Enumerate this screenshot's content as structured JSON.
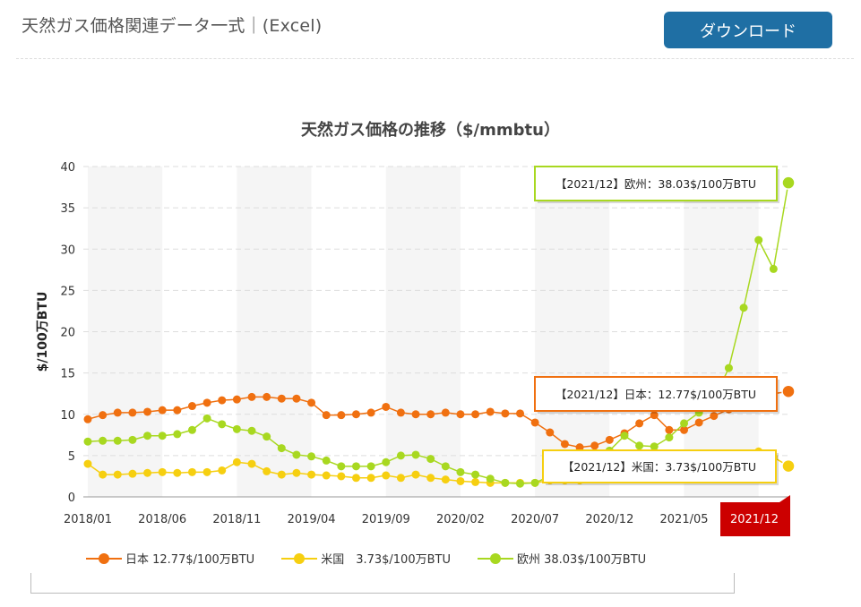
{
  "header": {
    "title": "天然ガス価格関連データ一式｜(Excel)",
    "download_label": "ダウンロード"
  },
  "colors": {
    "japan": "#f07010",
    "us": "#f6cf10",
    "europe": "#a8d820",
    "highlight": "#cc0000",
    "download_button": "#1f6fa4"
  },
  "chart_data": {
    "type": "line",
    "title": "天然ガス価格の推移（$/mmbtu）",
    "ylabel": "$/100万BTU",
    "xlabel": "",
    "ylim": [
      0,
      40
    ],
    "yticks": [
      "0",
      "5",
      "10",
      "15",
      "20",
      "25",
      "30",
      "35",
      "40"
    ],
    "x_tick_labels": [
      "2018/01",
      "2018/06",
      "2018/11",
      "2019/04",
      "2019/09",
      "2020/02",
      "2020/07",
      "2020/12",
      "2021/05",
      "2021/12"
    ],
    "highlighted_x_label": "2021/12",
    "grid": true,
    "legend_position": "bottom",
    "series": [
      {
        "name": "日本",
        "legend_label": "日本 12.77$/100万BTU",
        "tooltip": "【2021/12】日本：12.77$/100万BTU",
        "values": [
          9.4,
          9.9,
          10.2,
          10.2,
          10.3,
          10.5,
          10.5,
          11.0,
          11.4,
          11.7,
          11.8,
          12.1,
          12.1,
          11.9,
          11.9,
          11.4,
          9.9,
          9.9,
          10.0,
          10.2,
          10.9,
          10.2,
          10.0,
          10.0,
          10.2,
          10.0,
          10.0,
          10.3,
          10.1,
          10.1,
          9.0,
          7.8,
          6.4,
          6.0,
          6.2,
          6.9,
          7.7,
          8.9,
          9.9,
          8.1,
          8.1,
          9.0,
          9.8,
          10.6,
          13.8,
          13.0,
          12.5,
          12.77
        ]
      },
      {
        "name": "米国",
        "legend_label": "米国　3.73$/100万BTU",
        "tooltip": "【2021/12】米国：3.73$/100万BTU",
        "values": [
          4.0,
          2.7,
          2.7,
          2.8,
          2.9,
          3.0,
          2.9,
          3.0,
          3.0,
          3.2,
          4.2,
          4.0,
          3.1,
          2.7,
          2.9,
          2.7,
          2.6,
          2.5,
          2.3,
          2.3,
          2.6,
          2.3,
          2.7,
          2.3,
          2.1,
          1.9,
          1.8,
          1.7,
          1.7,
          1.7,
          1.7,
          2.0,
          2.0,
          2.0,
          2.3,
          2.4,
          2.6,
          2.7,
          2.9,
          2.8,
          2.9,
          3.0,
          3.2,
          3.8,
          4.3,
          5.5,
          4.8,
          3.73
        ]
      },
      {
        "name": "欧州",
        "legend_label": "欧州 38.03$/100万BTU",
        "tooltip": "【2021/12】欧州：38.03$/100万BTU",
        "values": [
          6.7,
          6.8,
          6.8,
          6.9,
          7.4,
          7.4,
          7.6,
          8.1,
          9.5,
          8.8,
          8.2,
          8.0,
          7.3,
          5.9,
          5.1,
          4.9,
          4.4,
          3.7,
          3.7,
          3.7,
          4.2,
          5.0,
          5.1,
          4.6,
          3.7,
          3.0,
          2.7,
          2.2,
          1.7,
          1.6,
          1.7,
          2.5,
          3.0,
          3.9,
          4.5,
          5.6,
          7.4,
          6.2,
          6.1,
          7.2,
          8.9,
          10.2,
          11.8,
          15.6,
          22.9,
          31.1,
          27.6,
          38.03
        ]
      }
    ]
  }
}
